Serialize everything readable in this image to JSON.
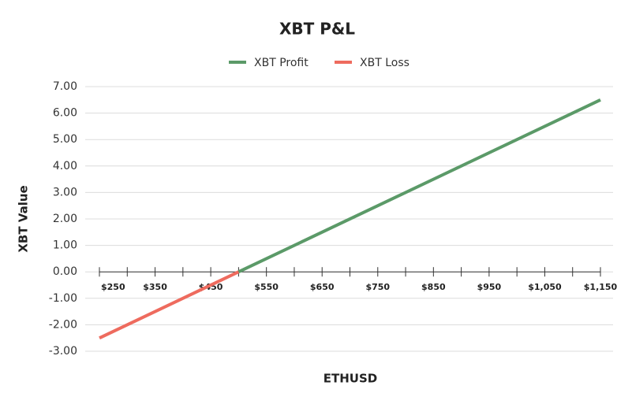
{
  "chart_data": {
    "type": "line",
    "title": "XBT P&L",
    "x_label": "ETHUSD",
    "y_label": "XBT Value",
    "x": [
      250,
      500,
      1150
    ],
    "series": [
      {
        "name": "XBT Profit",
        "color": "#5b9a68",
        "values": [
          null,
          0,
          6.5
        ]
      },
      {
        "name": "XBT Loss",
        "color": "#ee6b5e",
        "values": [
          -2.5,
          0,
          null
        ]
      }
    ],
    "xlim": [
      250,
      1150
    ],
    "xticks": [
      {
        "value": 250,
        "label": "$250"
      },
      {
        "value": 350,
        "label": "$350"
      },
      {
        "value": 450,
        "label": "$450"
      },
      {
        "value": 550,
        "label": "$550"
      },
      {
        "value": 650,
        "label": "$650"
      },
      {
        "value": 750,
        "label": "$750"
      },
      {
        "value": 850,
        "label": "$850"
      },
      {
        "value": 950,
        "label": "$950"
      },
      {
        "value": 1050,
        "label": "$1,050"
      },
      {
        "value": 1150,
        "label": "$1,150"
      }
    ],
    "xminorticks": [
      300,
      400,
      500,
      600,
      700,
      800,
      900,
      1000,
      1100
    ],
    "ylim": [
      -3,
      7
    ],
    "yticks": [
      {
        "value": 7,
        "label": "7.00"
      },
      {
        "value": 6,
        "label": "6.00"
      },
      {
        "value": 5,
        "label": "5.00"
      },
      {
        "value": 4,
        "label": "4.00"
      },
      {
        "value": 3,
        "label": "3.00"
      },
      {
        "value": 2,
        "label": "2.00"
      },
      {
        "value": 1,
        "label": "1.00"
      },
      {
        "value": 0,
        "label": "0.00"
      },
      {
        "value": -1,
        "label": "-1.00"
      },
      {
        "value": -2,
        "label": "-2.00"
      },
      {
        "value": -3,
        "label": "-3.00"
      }
    ],
    "grid": true,
    "legend": "top"
  }
}
